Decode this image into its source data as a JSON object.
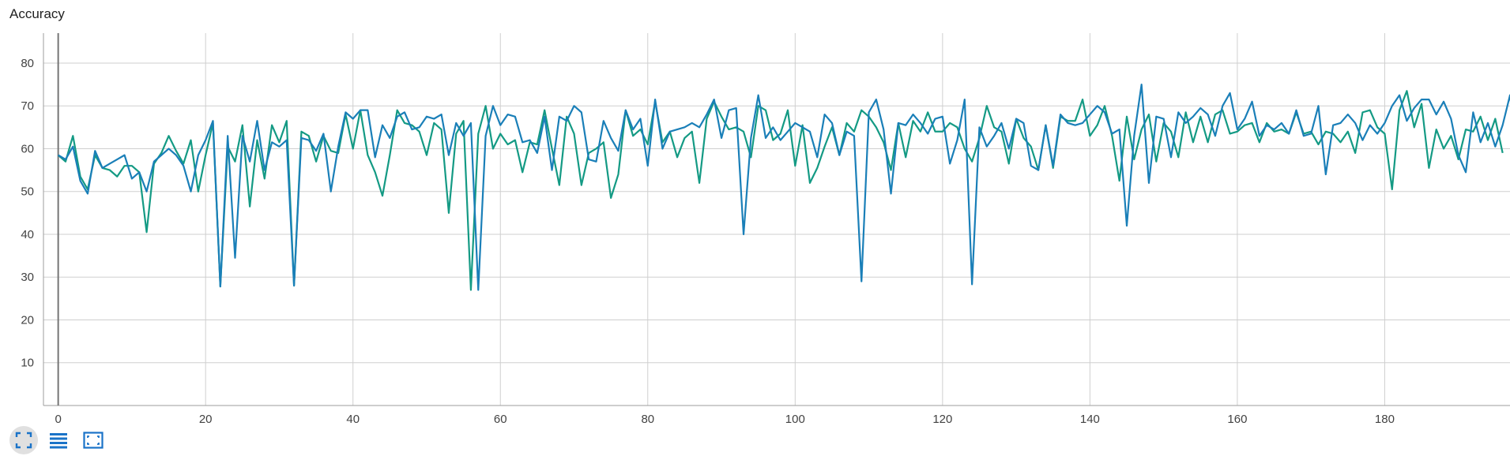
{
  "title": "Accuracy",
  "toolbar": {
    "icons": [
      "fit-domain-icon",
      "toggle-log-list-icon",
      "fit-to-data-icon"
    ]
  },
  "colors": {
    "series_a": "#1a7fb8",
    "series_b": "#149a84",
    "grid": "#cfcfcf",
    "axis": "#9e9e9e",
    "active_button": "#e0e0e0",
    "icon": "#1a73c8"
  },
  "chart_data": {
    "type": "line",
    "title": "Accuracy",
    "xlabel": "",
    "ylabel": "",
    "xlim": [
      -2,
      197
    ],
    "ylim": [
      0,
      87
    ],
    "x_ticks": [
      0,
      20,
      40,
      60,
      80,
      100,
      120,
      140,
      160,
      180
    ],
    "y_ticks": [
      10,
      20,
      30,
      40,
      50,
      60,
      70,
      80
    ],
    "grid": true,
    "legend": "none",
    "series": [
      {
        "values": [
          58.5,
          57.5,
          60.5,
          52.5,
          49.5,
          59.5,
          55.5,
          56.5,
          57.5,
          58.5,
          53,
          54.5,
          50,
          57,
          58.5,
          60,
          58.5,
          56,
          50,
          58.5,
          62,
          66.5,
          27.8,
          63,
          34.5,
          63,
          57,
          66.5,
          55,
          61.5,
          60.5,
          62,
          28,
          62.5,
          62,
          59.5,
          63.5,
          50,
          60.5,
          68.5,
          67,
          69,
          69,
          58,
          65.5,
          62.5,
          67.5,
          68.5,
          64.5,
          65,
          67.5,
          67,
          68,
          58.5,
          66,
          63,
          66,
          27,
          63,
          70,
          65.5,
          68,
          67.5,
          61.5,
          62,
          59,
          67.5,
          55,
          67.5,
          66.5,
          70,
          68.5,
          57.5,
          57,
          66.5,
          62.5,
          59.5,
          69,
          64.5,
          67,
          56,
          71.5,
          60,
          64,
          64.5,
          65,
          66,
          65,
          68,
          71.5,
          62.5,
          69,
          69.5,
          40,
          62.5,
          72.5,
          62.5,
          65,
          62,
          64,
          66,
          65,
          64,
          58,
          68,
          66,
          58.5,
          64,
          63,
          29,
          68.5,
          71.5,
          64.5,
          49.5,
          66,
          65.5,
          68,
          66,
          63.5,
          67,
          67.5,
          56.5,
          62,
          71.5,
          28.3,
          65,
          60.5,
          63,
          66,
          60,
          67,
          66,
          56,
          55,
          65.5,
          56,
          68,
          66,
          65.5,
          66,
          68,
          70,
          68.5,
          63.5,
          64.5,
          42,
          63,
          75,
          52,
          67.5,
          67,
          58,
          68.5,
          66,
          67.5,
          69.5,
          68,
          63,
          70,
          73,
          64.5,
          67,
          71,
          63,
          65.5,
          64.5,
          66,
          63.5,
          69,
          63,
          63.5,
          70,
          54,
          65.5,
          66,
          68,
          66,
          62,
          65.5,
          63.5,
          66,
          70,
          72.5,
          66.5,
          69.5,
          71.5,
          71.5,
          68,
          71,
          67,
          58.5,
          54.5,
          68.5,
          61.5,
          66,
          60.5,
          65.5,
          72.5,
          59
        ]
      },
      {
        "values": [
          58.5,
          57,
          63,
          53.5,
          50.5,
          58.5,
          55.5,
          55,
          53.5,
          56,
          56,
          54.5,
          40.5,
          56.5,
          59,
          63,
          59.5,
          56.5,
          62,
          50,
          58.5,
          66,
          27.8,
          60.5,
          57,
          65.5,
          46.5,
          62,
          53,
          65.5,
          61.5,
          66.5,
          28,
          64,
          63,
          57,
          63,
          59.5,
          59,
          68,
          60,
          69,
          58.5,
          54.5,
          49,
          58.5,
          69,
          66,
          65.5,
          64,
          58.5,
          66,
          64.5,
          45,
          63.5,
          66.5,
          27,
          63.5,
          70,
          60,
          63.5,
          61,
          62,
          54.5,
          61.5,
          61,
          69,
          60,
          51.5,
          67.5,
          63.5,
          51.5,
          59,
          60,
          61.5,
          48.5,
          54,
          69,
          63,
          64.5,
          61,
          71,
          61.5,
          64,
          58,
          62.5,
          64,
          52,
          67,
          71,
          67.5,
          64.5,
          65,
          64,
          58,
          70,
          69,
          62,
          63.5,
          69,
          56,
          65.5,
          52,
          55.5,
          60.5,
          65,
          58.5,
          66,
          64,
          69,
          67.5,
          65,
          61.5,
          55,
          66,
          58,
          66.5,
          64,
          68.5,
          64,
          64,
          66,
          65,
          60,
          57,
          62.5,
          70,
          65,
          64,
          56.5,
          67,
          62.5,
          60.5,
          55,
          65.5,
          55.5,
          67.5,
          66.5,
          66.5,
          71.5,
          63,
          65.5,
          70,
          63,
          52.5,
          67.5,
          57.5,
          64.5,
          68,
          57,
          66,
          64,
          58,
          68.5,
          61.5,
          67.5,
          61.5,
          68,
          69,
          63.5,
          64,
          65.5,
          66,
          61.5,
          66,
          64,
          64.5,
          63.5,
          68.5,
          63.5,
          64,
          61,
          64,
          63.5,
          61.5,
          64,
          59,
          68.5,
          69,
          65,
          63.5,
          50.5,
          69,
          73.5,
          65,
          70.5,
          55.5,
          64.5,
          60,
          63,
          57.5,
          64.5,
          64,
          67.5,
          62,
          67,
          59
        ]
      }
    ]
  }
}
